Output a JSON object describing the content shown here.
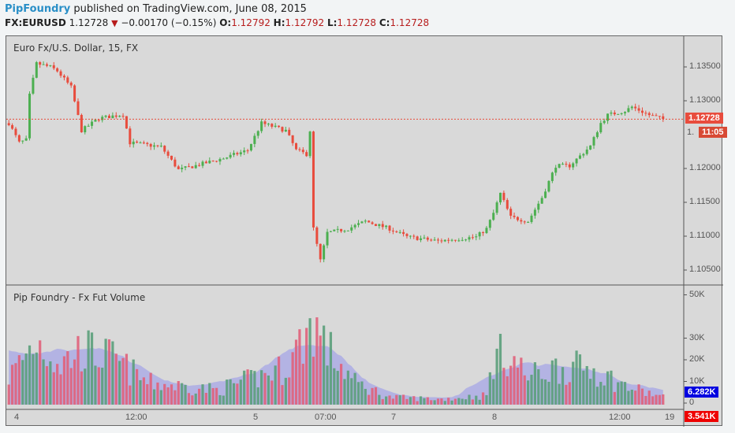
{
  "header": {
    "author": "PipFoundry",
    "published": "published on TradingView.com, June 08, 2015"
  },
  "quote": {
    "symbol": "FX:EURUSD",
    "last": "1.12728",
    "change": "−0.00170 (−0.15%)",
    "o_label": "O:",
    "o": "1.12792",
    "h_label": "H:",
    "h": "1.12792",
    "l_label": "L:",
    "l": "1.12728",
    "c_label": "C:",
    "c": "1.12728"
  },
  "main_pane": {
    "title": "Euro Fx/U.S. Dollar, 15, FX",
    "price_tag": "1.12728",
    "countdown": "11:05",
    "countdown_prefix": "1.",
    "price_ticks": [
      "1.13500",
      "1.13000",
      "1.12000",
      "1.11500",
      "1.11000",
      "1.10500"
    ]
  },
  "volume_pane": {
    "title": "Pip Foundry - Fx Fut Volume",
    "ticks": [
      "50K",
      "30K",
      "20K",
      "10K",
      "0"
    ],
    "tag_blue": "6.282K",
    "tag_red": "3.541K"
  },
  "time_axis": [
    "4",
    "12:00",
    "5",
    "07:00",
    "7",
    "8",
    "12:00",
    "19"
  ],
  "colors": {
    "up": "#4caf50",
    "down": "#e84c3d",
    "volume_up": "#5a9e7a",
    "volume_down": "#e0607a",
    "ma": "#a6a6e6"
  },
  "chart_data": {
    "type": "candlestick",
    "symbol": "EURUSD",
    "interval": "15",
    "close_keypoints": [
      [
        0,
        1.1267
      ],
      [
        3,
        1.1238
      ],
      [
        5,
        1.1242
      ],
      [
        6,
        1.1308
      ],
      [
        8,
        1.1355
      ],
      [
        12,
        1.135
      ],
      [
        14,
        1.1344
      ],
      [
        18,
        1.132
      ],
      [
        21,
        1.1256
      ],
      [
        26,
        1.1274
      ],
      [
        33,
        1.128
      ],
      [
        35,
        1.1238
      ],
      [
        44,
        1.1232
      ],
      [
        49,
        1.1198
      ],
      [
        53,
        1.1203
      ],
      [
        62,
        1.1215
      ],
      [
        69,
        1.1227
      ],
      [
        73,
        1.1267
      ],
      [
        80,
        1.1256
      ],
      [
        83,
        1.1227
      ],
      [
        86,
        1.1221
      ],
      [
        87,
        1.1256
      ],
      [
        88,
        1.1111
      ],
      [
        90,
        1.1064
      ],
      [
        92,
        1.1105
      ],
      [
        98,
        1.1111
      ],
      [
        103,
        1.1122
      ],
      [
        110,
        1.1111
      ],
      [
        115,
        1.1099
      ],
      [
        124,
        1.1093
      ],
      [
        135,
        1.1099
      ],
      [
        138,
        1.1111
      ],
      [
        140,
        1.1134
      ],
      [
        142,
        1.1163
      ],
      [
        145,
        1.1128
      ],
      [
        150,
        1.1122
      ],
      [
        154,
        1.1157
      ],
      [
        158,
        1.1204
      ],
      [
        162,
        1.1204
      ],
      [
        168,
        1.1233
      ],
      [
        171,
        1.1267
      ],
      [
        173,
        1.1279
      ],
      [
        178,
        1.1285
      ],
      [
        180,
        1.1291
      ],
      [
        185,
        1.1279
      ],
      [
        189,
        1.1273
      ]
    ],
    "volume_keypoints": [
      [
        0,
        15
      ],
      [
        8,
        35
      ],
      [
        15,
        22
      ],
      [
        21,
        30
      ],
      [
        30,
        25
      ],
      [
        40,
        12
      ],
      [
        60,
        8
      ],
      [
        72,
        15
      ],
      [
        80,
        20
      ],
      [
        88,
        45
      ],
      [
        92,
        30
      ],
      [
        100,
        12
      ],
      [
        110,
        4
      ],
      [
        125,
        3
      ],
      [
        138,
        5
      ],
      [
        140,
        25
      ],
      [
        144,
        28
      ],
      [
        150,
        15
      ],
      [
        158,
        20
      ],
      [
        168,
        20
      ],
      [
        178,
        10
      ],
      [
        189,
        4
      ]
    ],
    "ylim": [
      1.1035,
      1.1385
    ],
    "volume_ylim": [
      0,
      55
    ]
  }
}
